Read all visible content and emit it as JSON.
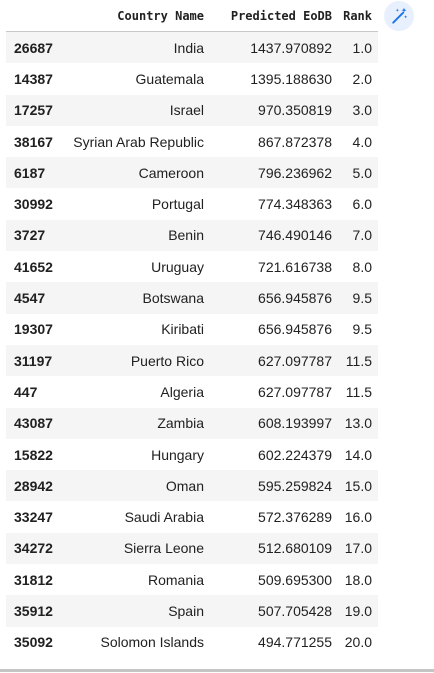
{
  "dataframe": {
    "columns": [
      "",
      "Country Name",
      "Predicted EoDB",
      "Rank"
    ],
    "rows": [
      {
        "index": "26687",
        "country": "India",
        "predicted": "1437.970892",
        "rank": "1.0"
      },
      {
        "index": "14387",
        "country": "Guatemala",
        "predicted": "1395.188630",
        "rank": "2.0"
      },
      {
        "index": "17257",
        "country": "Israel",
        "predicted": "970.350819",
        "rank": "3.0"
      },
      {
        "index": "38167",
        "country": "Syrian Arab Republic",
        "predicted": "867.872378",
        "rank": "4.0"
      },
      {
        "index": "6187",
        "country": "Cameroon",
        "predicted": "796.236962",
        "rank": "5.0"
      },
      {
        "index": "30992",
        "country": "Portugal",
        "predicted": "774.348363",
        "rank": "6.0"
      },
      {
        "index": "3727",
        "country": "Benin",
        "predicted": "746.490146",
        "rank": "7.0"
      },
      {
        "index": "41652",
        "country": "Uruguay",
        "predicted": "721.616738",
        "rank": "8.0"
      },
      {
        "index": "4547",
        "country": "Botswana",
        "predicted": "656.945876",
        "rank": "9.5"
      },
      {
        "index": "19307",
        "country": "Kiribati",
        "predicted": "656.945876",
        "rank": "9.5"
      },
      {
        "index": "31197",
        "country": "Puerto Rico",
        "predicted": "627.097787",
        "rank": "11.5"
      },
      {
        "index": "447",
        "country": "Algeria",
        "predicted": "627.097787",
        "rank": "11.5"
      },
      {
        "index": "43087",
        "country": "Zambia",
        "predicted": "608.193997",
        "rank": "13.0"
      },
      {
        "index": "15822",
        "country": "Hungary",
        "predicted": "602.224379",
        "rank": "14.0"
      },
      {
        "index": "28942",
        "country": "Oman",
        "predicted": "595.259824",
        "rank": "15.0"
      },
      {
        "index": "33247",
        "country": "Saudi Arabia",
        "predicted": "572.376289",
        "rank": "16.0"
      },
      {
        "index": "34272",
        "country": "Sierra Leone",
        "predicted": "512.680109",
        "rank": "17.0"
      },
      {
        "index": "31812",
        "country": "Romania",
        "predicted": "509.695300",
        "rank": "18.0"
      },
      {
        "index": "35912",
        "country": "Spain",
        "predicted": "507.705428",
        "rank": "19.0"
      },
      {
        "index": "35092",
        "country": "Solomon Islands",
        "predicted": "494.771255",
        "rank": "20.0"
      }
    ]
  },
  "toolbar": {
    "magic_icon": "magic-wand-icon"
  },
  "colors": {
    "accent": "#1a73e8",
    "button_bg": "#e8f0fe",
    "stripe": "#f5f5f5",
    "text": "#212121"
  }
}
